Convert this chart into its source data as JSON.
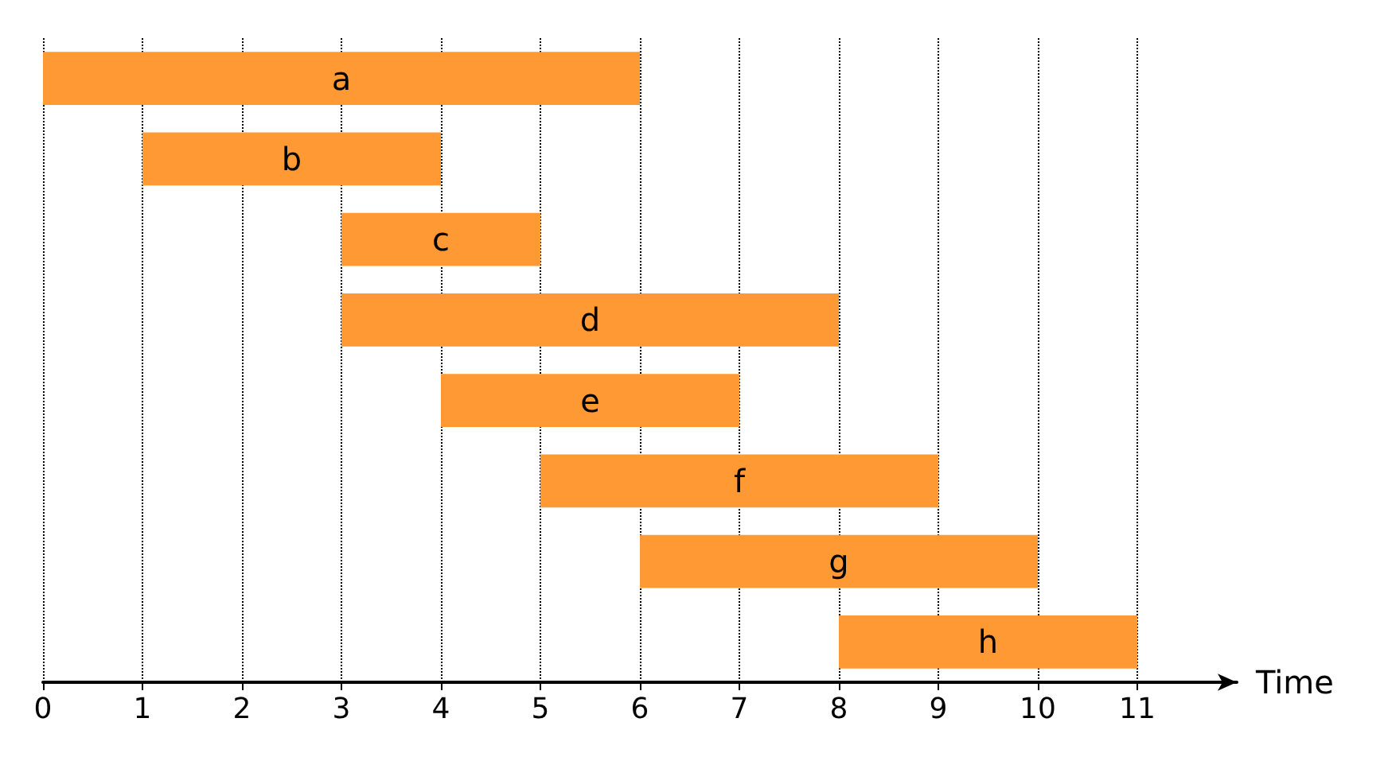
{
  "chart_data": {
    "type": "bar",
    "orientation": "horizontal",
    "xlabel": "Time",
    "categories": [
      "a",
      "b",
      "c",
      "d",
      "e",
      "f",
      "g",
      "h"
    ],
    "base": [
      0,
      1,
      3,
      3,
      4,
      5,
      6,
      8
    ],
    "values": [
      6,
      3,
      2,
      5,
      3,
      4,
      4,
      3
    ],
    "color": "#ff9933",
    "xlim": [
      0,
      12
    ],
    "xticks": [
      0,
      1,
      2,
      3,
      4,
      5,
      6,
      7,
      8,
      9,
      10,
      11
    ],
    "grid": "x"
  }
}
